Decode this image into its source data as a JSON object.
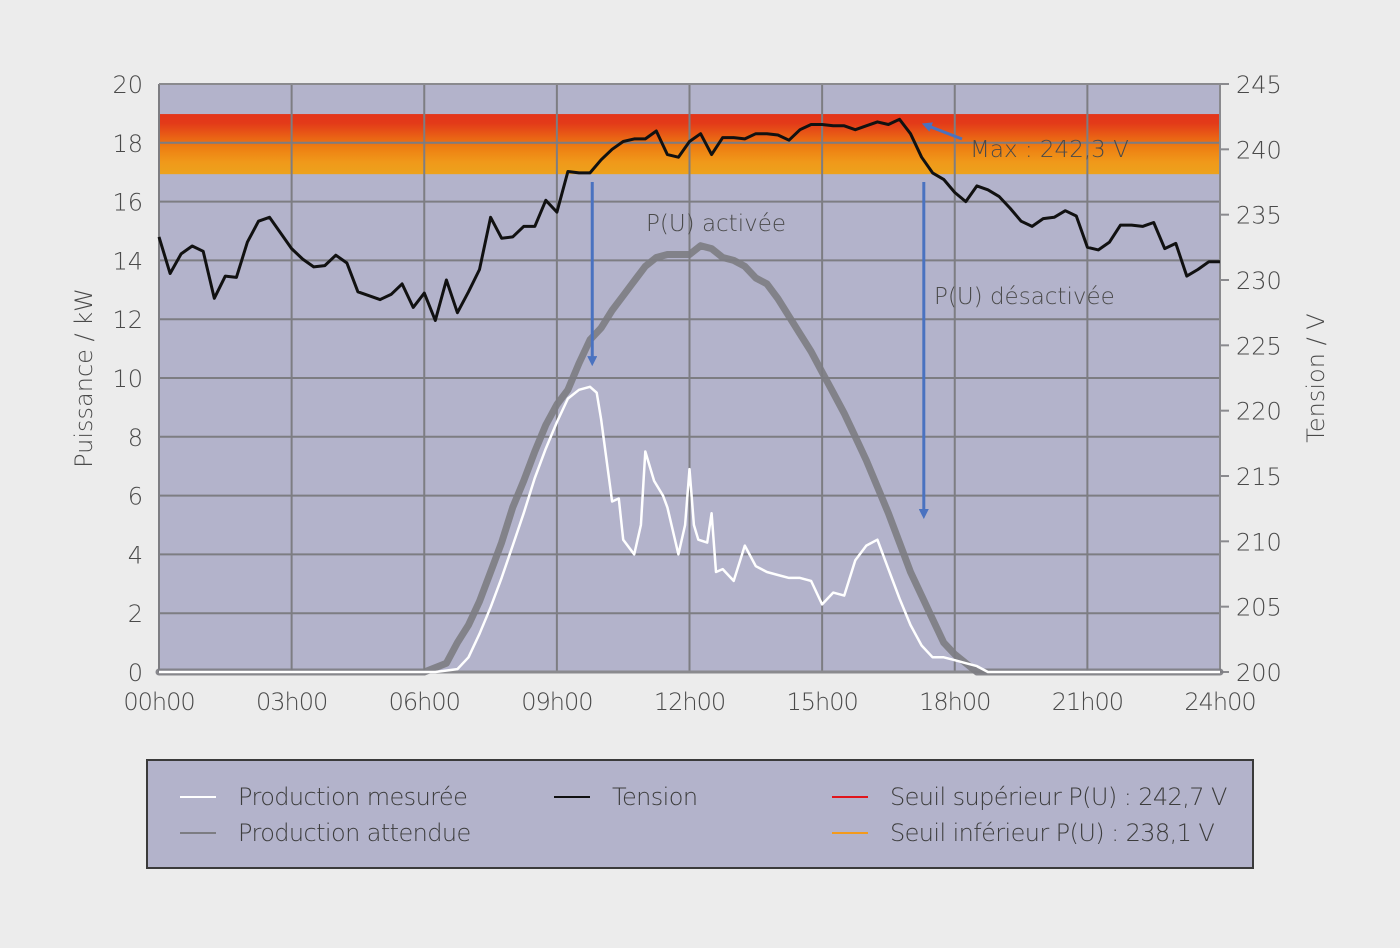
{
  "chart_data": {
    "type": "line",
    "title": "",
    "xlabel": "",
    "ylabel_left": "Puissance / kW",
    "ylabel_right": "Tension / V",
    "x_ticks": [
      "00h00",
      "03h00",
      "06h00",
      "09h00",
      "12h00",
      "15h00",
      "18h00",
      "21h00",
      "24h00"
    ],
    "y_left_ticks": [
      "0",
      "2",
      "4",
      "6",
      "8",
      "10",
      "12",
      "14",
      "16",
      "18",
      "20"
    ],
    "y_right_ticks": [
      "200",
      "205",
      "210",
      "215",
      "220",
      "225",
      "230",
      "235",
      "240",
      "245"
    ],
    "y_left_range": [
      0,
      20
    ],
    "y_right_range": [
      200,
      245
    ],
    "x_range_hours": [
      0,
      24
    ],
    "grid": true,
    "background_color": "#b3b3cb",
    "threshold_band": {
      "upper_V": 242.7,
      "lower_V": 238.1,
      "upper_color": "#e3351a",
      "lower_color": "#f0a019"
    },
    "series": [
      {
        "name": "Tension",
        "axis": "right",
        "color": "#111111",
        "x_hours": [
          0,
          0.25,
          0.5,
          0.75,
          1.0,
          1.25,
          1.5,
          1.75,
          2.0,
          2.25,
          2.5,
          2.75,
          3.0,
          3.25,
          3.5,
          3.75,
          4.0,
          4.25,
          4.5,
          4.75,
          5.0,
          5.25,
          5.5,
          5.75,
          6.0,
          6.25,
          6.5,
          6.75,
          7.0,
          7.25,
          7.5,
          7.75,
          8.0,
          8.25,
          8.5,
          8.75,
          9.0,
          9.25,
          9.5,
          9.75,
          10.0,
          10.25,
          10.5,
          10.75,
          11.0,
          11.25,
          11.5,
          11.75,
          12.0,
          12.25,
          12.5,
          12.75,
          13.0,
          13.25,
          13.5,
          13.75,
          14.0,
          14.25,
          14.5,
          14.75,
          15.0,
          15.25,
          15.5,
          15.75,
          16.0,
          16.25,
          16.5,
          16.75,
          17.0,
          17.25,
          17.5,
          17.75,
          18.0,
          18.25,
          18.5,
          18.75,
          19.0,
          19.25,
          19.5,
          19.75,
          20.0,
          20.25,
          20.5,
          20.75,
          21.0,
          21.25,
          21.5,
          21.75,
          22.0,
          22.25,
          22.5,
          22.75,
          23.0,
          23.25,
          23.5,
          23.75,
          24.0
        ],
        "values": [
          233.3,
          230.5,
          232.0,
          232.6,
          232.2,
          228.6,
          230.3,
          230.2,
          232.9,
          234.5,
          234.8,
          233.6,
          232.4,
          231.6,
          231.0,
          231.1,
          231.9,
          231.3,
          229.1,
          228.8,
          228.5,
          228.9,
          229.7,
          227.9,
          229.0,
          226.9,
          230.0,
          227.5,
          229.1,
          230.8,
          234.8,
          233.2,
          233.3,
          234.1,
          234.1,
          236.1,
          235.2,
          238.3,
          238.2,
          238.2,
          239.2,
          240.0,
          240.6,
          240.8,
          240.8,
          241.4,
          239.6,
          239.4,
          240.6,
          241.2,
          239.6,
          240.9,
          240.9,
          240.8,
          241.2,
          241.2,
          241.1,
          240.7,
          241.5,
          241.9,
          241.9,
          241.8,
          241.8,
          241.5,
          241.8,
          242.1,
          241.9,
          242.3,
          241.2,
          239.4,
          238.2,
          237.7,
          236.7,
          236.0,
          237.2,
          236.9,
          236.4,
          235.5,
          234.5,
          234.1,
          234.7,
          234.8,
          235.3,
          234.9,
          232.5,
          232.3,
          232.9,
          234.2,
          234.2,
          234.1,
          234.4,
          232.4,
          232.8,
          230.3,
          230.8,
          231.4,
          231.4
        ]
      },
      {
        "name": "Production attendue",
        "axis": "left",
        "color": "#7c7c82",
        "x_hours": [
          0,
          6.0,
          6.5,
          6.75,
          7.0,
          7.25,
          7.5,
          7.75,
          8.0,
          8.25,
          8.5,
          8.75,
          9.0,
          9.25,
          9.5,
          9.75,
          10.0,
          10.25,
          10.5,
          10.75,
          11.0,
          11.25,
          11.5,
          11.75,
          12.0,
          12.25,
          12.5,
          12.75,
          13.0,
          13.25,
          13.5,
          13.75,
          14.0,
          14.25,
          14.5,
          14.75,
          15.0,
          15.25,
          15.5,
          15.75,
          16.0,
          16.25,
          16.5,
          16.75,
          17.0,
          17.25,
          17.5,
          17.75,
          18.0,
          18.25,
          18.5,
          18.75,
          19.0,
          19.25,
          19.5,
          24.0
        ],
        "values": [
          0,
          0,
          0.3,
          1.0,
          1.6,
          2.4,
          3.4,
          4.4,
          5.6,
          6.5,
          7.5,
          8.4,
          9.1,
          9.6,
          10.5,
          11.3,
          11.7,
          12.3,
          12.8,
          13.3,
          13.8,
          14.1,
          14.2,
          14.2,
          14.2,
          14.5,
          14.4,
          14.1,
          14.0,
          13.8,
          13.4,
          13.2,
          12.7,
          12.1,
          11.5,
          10.9,
          10.2,
          9.5,
          8.8,
          8.0,
          7.2,
          6.3,
          5.4,
          4.4,
          3.4,
          2.6,
          1.8,
          1.0,
          0.6,
          0.3,
          0,
          0,
          0,
          0,
          0,
          0
        ],
        "note": "continues at 0 after ~19h"
      },
      {
        "name": "Production mesurée",
        "axis": "left",
        "color": "#ffffff",
        "x_hours": [
          0,
          6.25,
          6.75,
          7.0,
          7.25,
          7.5,
          7.75,
          8.0,
          8.25,
          8.5,
          8.75,
          9.0,
          9.25,
          9.5,
          9.75,
          9.9,
          10.0,
          10.25,
          10.4,
          10.5,
          10.75,
          10.9,
          11.0,
          11.2,
          11.4,
          11.5,
          11.75,
          11.9,
          12.0,
          12.1,
          12.2,
          12.4,
          12.5,
          12.6,
          12.75,
          13.0,
          13.25,
          13.5,
          13.75,
          14.0,
          14.25,
          14.5,
          14.75,
          15.0,
          15.25,
          15.5,
          15.75,
          16.0,
          16.25,
          16.5,
          16.75,
          17.0,
          17.25,
          17.5,
          17.75,
          18.0,
          18.25,
          18.5,
          18.75,
          19.0,
          19.25,
          19.5,
          20.0,
          20.5,
          21.0,
          24.0
        ],
        "values": [
          0,
          0,
          0.1,
          0.5,
          1.3,
          2.2,
          3.2,
          4.3,
          5.4,
          6.6,
          7.6,
          8.5,
          9.3,
          9.6,
          9.7,
          9.5,
          8.6,
          5.8,
          5.9,
          4.5,
          4.0,
          5.0,
          7.5,
          6.5,
          6.0,
          5.6,
          4.0,
          5.0,
          6.9,
          5.0,
          4.5,
          4.4,
          5.4,
          3.4,
          3.5,
          3.1,
          4.3,
          3.6,
          3.4,
          3.3,
          3.2,
          3.2,
          3.1,
          2.3,
          2.7,
          2.6,
          3.8,
          4.3,
          4.5,
          3.5,
          2.5,
          1.6,
          0.9,
          0.5,
          0.5,
          0.4,
          0.3,
          0.2,
          0,
          0,
          0,
          0,
          0,
          0,
          0,
          0
        ]
      },
      {
        "name": "Seuil supérieur P(U) : 242,7 V",
        "axis": "right",
        "color": "#e0151c",
        "constant": 242.7
      },
      {
        "name": "Seuil inférieur P(U) : 238,1 V",
        "axis": "right",
        "color": "#f39a1c",
        "constant": 238.1
      }
    ],
    "annotations": [
      {
        "text": "P(U) activée",
        "arrow_x_hours": 9.8,
        "arrow_from_V": 237.5,
        "arrow_to_kW": 10.3
      },
      {
        "text": "P(U) désactivée",
        "arrow_x_hours": 17.3,
        "arrow_from_V": 237.5,
        "arrow_to_kW": 5.1
      },
      {
        "text": "Max : 242,3 V",
        "point_x_hours": 17.0,
        "point_V": 242.3
      }
    ],
    "legend_position": "bottom"
  },
  "axes": {
    "left_label": "Puissance / kW",
    "right_label": "Tension / V"
  },
  "annotations": {
    "activated": "P(U) activée",
    "deactivated": "P(U) désactivée",
    "max": "Max : 242,3 V"
  },
  "legend": {
    "measured": "Production mesurée",
    "expected": "Production attendue",
    "tension": "Tension",
    "upper": "Seuil supérieur P(U) : 242,7 V",
    "lower": "Seuil inférieur P(U) : 238,1 V"
  }
}
